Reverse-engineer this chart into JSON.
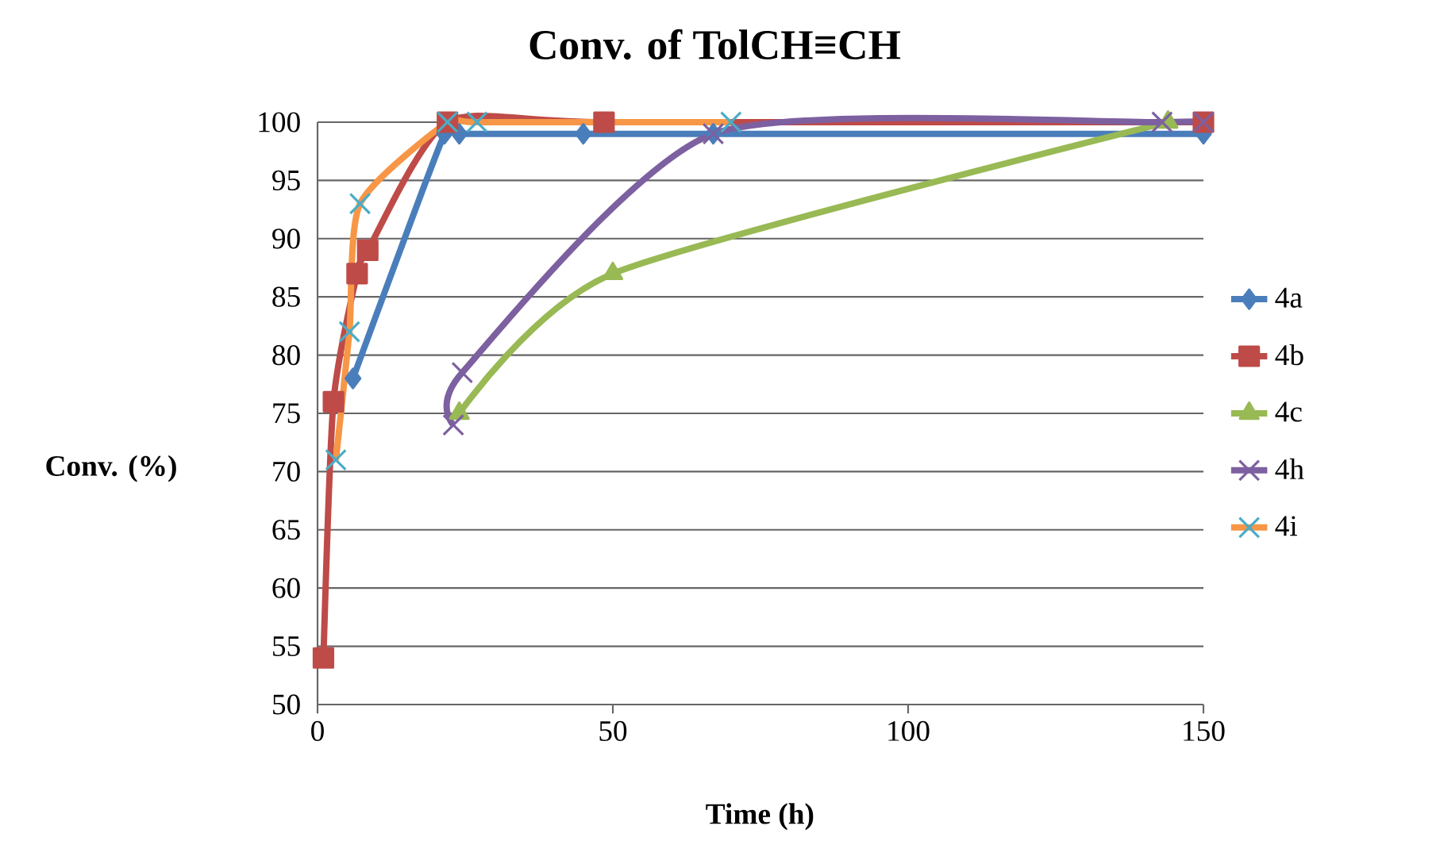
{
  "chart_data": {
    "type": "line",
    "title": "Conv. of TolCH≡CH",
    "xlabel": "Time (h)",
    "ylabel": "Conv. (%)",
    "xlim": [
      0,
      150
    ],
    "xticks": [
      0,
      50,
      100,
      150
    ],
    "ylim": [
      50,
      100
    ],
    "yticks": [
      50,
      55,
      60,
      65,
      70,
      75,
      80,
      85,
      90,
      95,
      100
    ],
    "grid": "y",
    "legend": "right",
    "series": [
      {
        "name": "4a",
        "color": "#4a7ebb",
        "marker": "diamond",
        "x": [
          6,
          21.5,
          24,
          45,
          67,
          150
        ],
        "values": [
          78,
          99,
          99,
          99,
          99,
          99
        ]
      },
      {
        "name": "4b",
        "color": "#be4b48",
        "marker": "square",
        "x": [
          1,
          2.7,
          6.7,
          8.5,
          22,
          48.5,
          150
        ],
        "values": [
          54,
          76,
          87,
          89,
          100,
          100,
          100
        ]
      },
      {
        "name": "4c",
        "color": "#98b954",
        "marker": "triangle",
        "x": [
          24,
          50,
          144
        ],
        "values": [
          75,
          87,
          100
        ]
      },
      {
        "name": "4h",
        "color": "#7d60a0",
        "marker": "cross",
        "x": [
          23,
          24.5,
          67,
          143,
          150
        ],
        "values": [
          74,
          78.5,
          99,
          100,
          100
        ]
      },
      {
        "name": "4i",
        "color": "#f79646",
        "colors": [
          "#4bacc6",
          "#4bacc6",
          "#4bacc6",
          "#4bacc6",
          "#4bacc6",
          "#4bacc6"
        ],
        "marker": "cross",
        "x": [
          3.1,
          5.4,
          7.2,
          22,
          27,
          70
        ],
        "values": [
          71,
          82,
          93,
          100,
          100,
          100
        ]
      }
    ]
  }
}
